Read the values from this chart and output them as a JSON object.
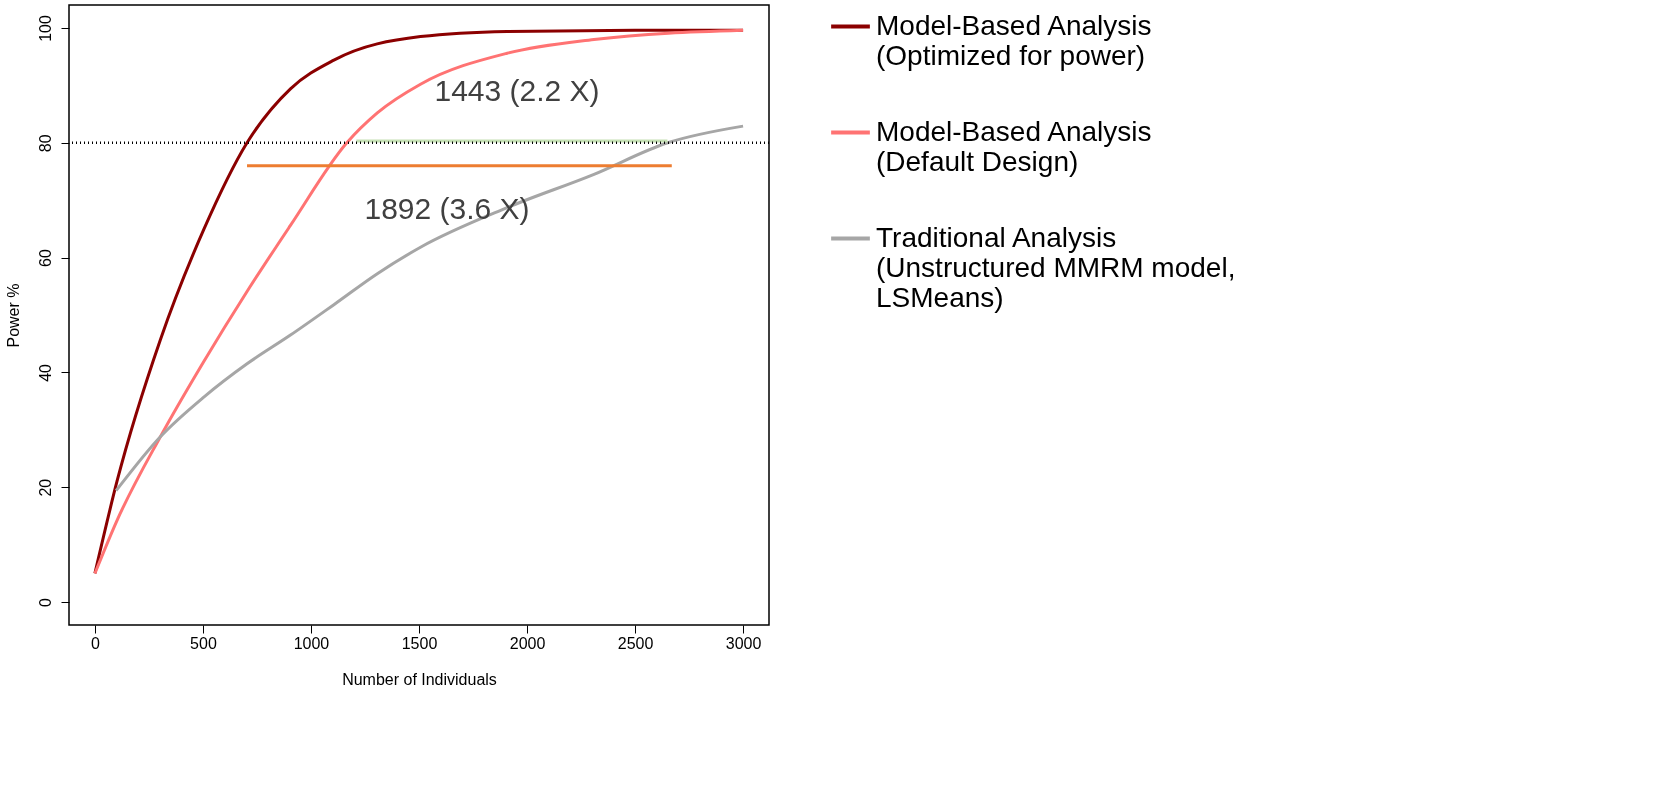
{
  "chart_data": {
    "type": "line",
    "xlabel": "Number of Individuals",
    "ylabel": "Power %",
    "xlim": [
      -120,
      3120
    ],
    "ylim": [
      -4,
      104
    ],
    "xticks": [
      0,
      500,
      1000,
      1500,
      2000,
      2500,
      3000
    ],
    "yticks": [
      0,
      20,
      40,
      60,
      80,
      100
    ],
    "grid": false,
    "legend": "right",
    "marker": "none",
    "line_style": "solid",
    "series": [
      {
        "name": "Model-Based Analysis\n(Optimized for power)",
        "color": "#8b0000",
        "x": [
          0,
          102,
          303,
          504,
          704,
          905,
          1106,
          1507,
          1908,
          2500,
          3000
        ],
        "values": [
          5,
          21,
          45.7,
          64.9,
          80,
          89.4,
          94.4,
          98.5,
          99.4,
          99.6,
          99.6
        ]
      },
      {
        "name": "Model-Based Analysis\n(Default Design)",
        "color": "#ff7373",
        "x": [
          0,
          102,
          303,
          504,
          704,
          905,
          1166,
          1307,
          1507,
          1908,
          2310,
          3000
        ],
        "values": [
          5,
          14.2,
          28.8,
          41.9,
          54.1,
          65.6,
          80,
          85.2,
          90.2,
          95.6,
          98,
          99.6
        ]
      },
      {
        "name": "Traditional Analysis\n(Unstructured MMRM model,\nLSMeans)",
        "color": "#a6a6a6",
        "x": [
          98,
          303,
          504,
          704,
          905,
          1106,
          1307,
          1507,
          1908,
          2310,
          2651,
          3000
        ],
        "values": [
          19.4,
          28.8,
          35.7,
          41.5,
          46.5,
          51.8,
          57.2,
          61.8,
          68.7,
          74.5,
          80,
          82.9
        ]
      },
      {
        "color": "#ed7d31",
        "x": [
          704,
          2670
        ],
        "values": [
          76,
          76
        ]
      },
      {
        "color": "#c5e0b4",
        "x": [
          1210,
          2650
        ],
        "values": [
          80.3,
          80.3
        ]
      }
    ],
    "ref_lines": [
      {
        "axis": "y",
        "value": 80,
        "color": "#000000",
        "line_style": "dotted"
      }
    ],
    "annotations": [
      "1443 (2.2 X)",
      "1892 (3.6 X)"
    ]
  }
}
